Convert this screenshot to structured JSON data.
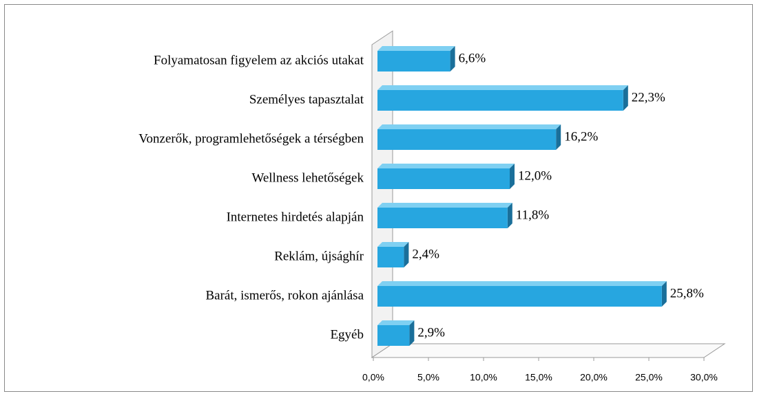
{
  "chart_data": {
    "type": "bar",
    "orientation": "horizontal",
    "categories": [
      "Folyamatosan figyelem az akciós utakat",
      "Személyes tapasztalat",
      "Vonzerők, programlehetőségek a térségben",
      "Wellness lehetőségek",
      "Internetes hirdetés alapján",
      "Reklám, újsághír",
      "Barát, ismerős, rokon ajánlása",
      "Egyéb"
    ],
    "values": [
      6.6,
      22.3,
      16.2,
      12.0,
      11.8,
      2.4,
      25.8,
      2.9
    ],
    "value_labels": [
      "6,6%",
      "22,3%",
      "16,2%",
      "12,0%",
      "11,8%",
      "2,4%",
      "25,8%",
      "2,9%"
    ],
    "color": "#27a6e0",
    "xlim": [
      0,
      30
    ],
    "xticks": [
      {
        "value": 0,
        "label": "0,0%"
      },
      {
        "value": 5,
        "label": "5,0%"
      },
      {
        "value": 10,
        "label": "10,0%"
      },
      {
        "value": 15,
        "label": "15,0%"
      },
      {
        "value": 20,
        "label": "20,0%"
      },
      {
        "value": 25,
        "label": "25,0%"
      },
      {
        "value": 30,
        "label": "30,0%"
      }
    ],
    "grid": false
  }
}
